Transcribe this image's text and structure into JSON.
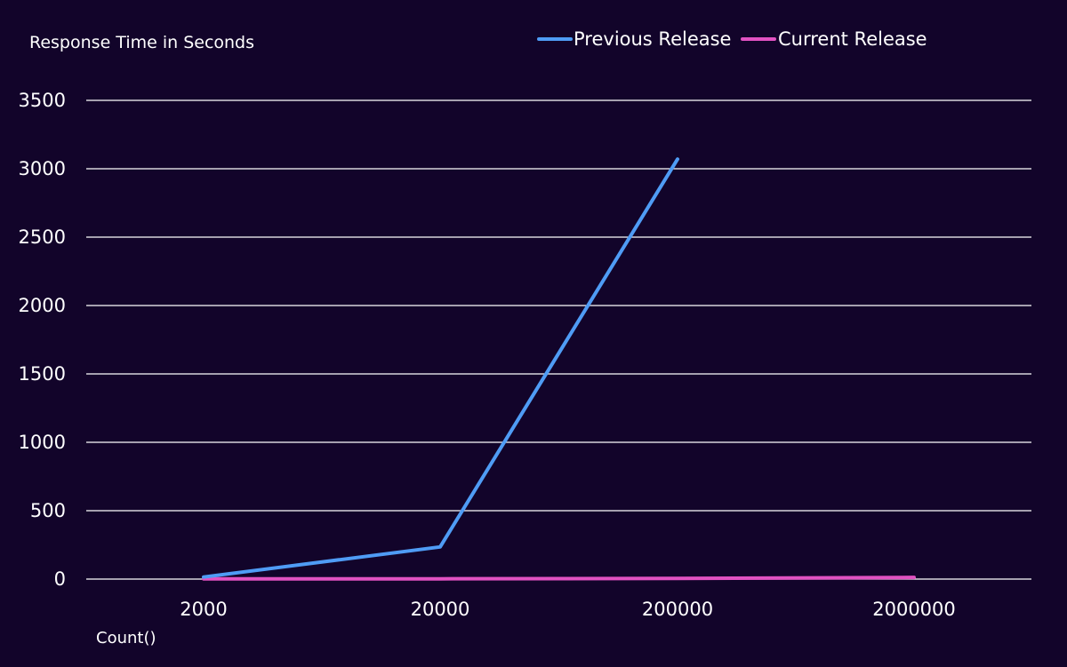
{
  "chart_data": {
    "type": "line",
    "title": "",
    "ylabel": "Response Time in Seconds",
    "xlabel": "Count()",
    "categories": [
      "2000",
      "20000",
      "200000",
      "2000000"
    ],
    "ylim": [
      0,
      3500
    ],
    "yticks": [
      0,
      500,
      1000,
      1500,
      2000,
      2500,
      3000,
      3500
    ],
    "grid": true,
    "legend_position": "top",
    "series": [
      {
        "name": "Previous Release",
        "color": "#4f9cf5",
        "values": [
          15,
          235,
          3070,
          null
        ]
      },
      {
        "name": "Current Release",
        "color": "#e152c2",
        "values": [
          2,
          2,
          5,
          12
        ]
      }
    ]
  }
}
